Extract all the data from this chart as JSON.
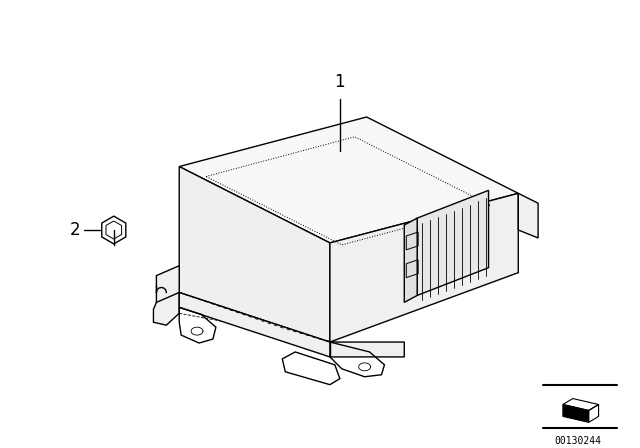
{
  "bg_color": "#ffffff",
  "line_color": "#000000",
  "fig_width": 6.4,
  "fig_height": 4.48,
  "dpi": 100,
  "part1_label": "1",
  "part2_label": "2",
  "catalog_number": "00130244",
  "lw": 1.0
}
